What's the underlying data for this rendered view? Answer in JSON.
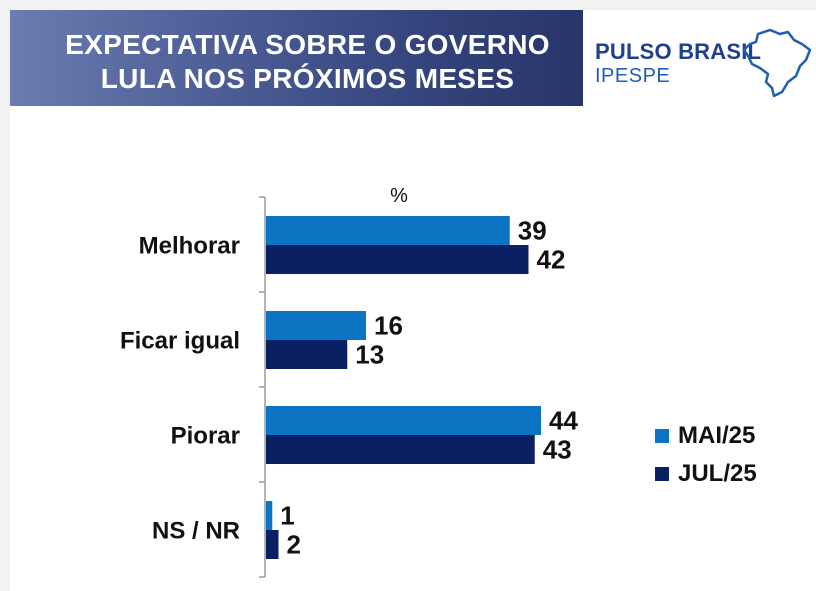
{
  "header": {
    "title_line1": "EXPECTATIVA SOBRE O GOVERNO",
    "title_line2": "LULA NOS PRÓXIMOS MESES"
  },
  "logo": {
    "name": "PULSO BRASIL",
    "sub": "IPESPE",
    "icon": "brazil-map-icon"
  },
  "colors": {
    "mai": "#0b74c3",
    "jul": "#0b1f63",
    "title_band": "#35457d",
    "logo_text": "#1f3f8f"
  },
  "chart_data": {
    "type": "bar",
    "orientation": "horizontal",
    "unit_label": "%",
    "categories": [
      "Melhorar",
      "Ficar igual",
      "Piorar",
      "NS / NR"
    ],
    "series": [
      {
        "name": "MAI/25",
        "values": [
          39,
          16,
          44,
          1
        ]
      },
      {
        "name": "JUL/25",
        "values": [
          42,
          13,
          43,
          2
        ]
      }
    ],
    "data_labels": true,
    "grid": false,
    "legend_position": "right"
  }
}
